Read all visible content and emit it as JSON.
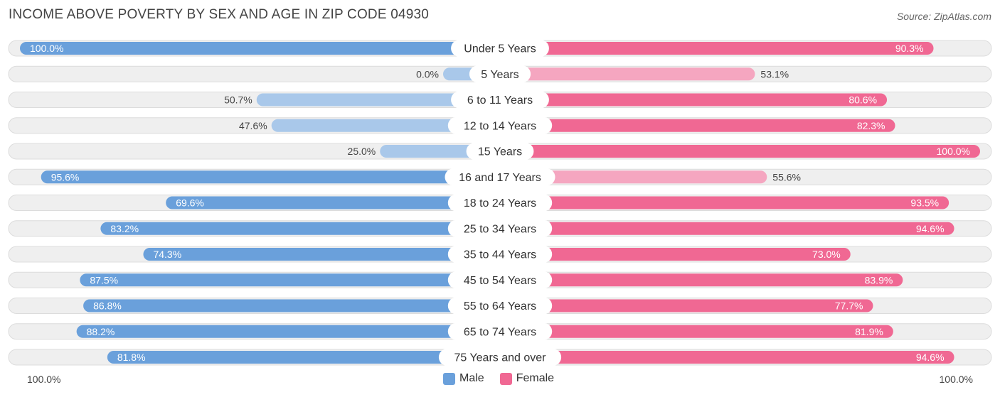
{
  "header": {
    "title": "INCOME ABOVE POVERTY BY SEX AND AGE IN ZIP CODE 04930",
    "source": "Source: ZipAtlas.com"
  },
  "axis": {
    "left_label": "100.0%",
    "right_label": "100.0%"
  },
  "legend": {
    "male_label": "Male",
    "female_label": "Female"
  },
  "colors": {
    "male_strong": "#6aa0db",
    "male_light": "#a9c8ea",
    "female_strong": "#f06893",
    "female_light": "#f5a6c0",
    "track": "#efefef",
    "track_border": "#dcdcdc"
  },
  "chart_data": {
    "type": "bar",
    "orientation": "horizontal-diverging",
    "title": "INCOME ABOVE POVERTY BY SEX AND AGE IN ZIP CODE 04930",
    "xlim": [
      0,
      100
    ],
    "unit": "%",
    "categories": [
      "Under 5 Years",
      "5 Years",
      "6 to 11 Years",
      "12 to 14 Years",
      "15 Years",
      "16 and 17 Years",
      "18 to 24 Years",
      "25 to 34 Years",
      "35 to 44 Years",
      "45 to 54 Years",
      "55 to 64 Years",
      "65 to 74 Years",
      "75 Years and over"
    ],
    "series": [
      {
        "name": "Male",
        "values": [
          100.0,
          0.0,
          50.7,
          47.6,
          25.0,
          95.6,
          69.6,
          83.2,
          74.3,
          87.5,
          86.8,
          88.2,
          81.8
        ],
        "labels": [
          "100.0%",
          "0.0%",
          "50.7%",
          "47.6%",
          "25.0%",
          "95.6%",
          "69.6%",
          "83.2%",
          "74.3%",
          "87.5%",
          "86.8%",
          "88.2%",
          "81.8%"
        ]
      },
      {
        "name": "Female",
        "values": [
          90.3,
          53.1,
          80.6,
          82.3,
          100.0,
          55.6,
          93.5,
          94.6,
          73.0,
          83.9,
          77.7,
          81.9,
          94.6
        ],
        "labels": [
          "90.3%",
          "53.1%",
          "80.6%",
          "82.3%",
          "100.0%",
          "55.6%",
          "93.5%",
          "94.6%",
          "73.0%",
          "83.9%",
          "77.7%",
          "81.9%",
          "94.6%"
        ]
      }
    ]
  }
}
